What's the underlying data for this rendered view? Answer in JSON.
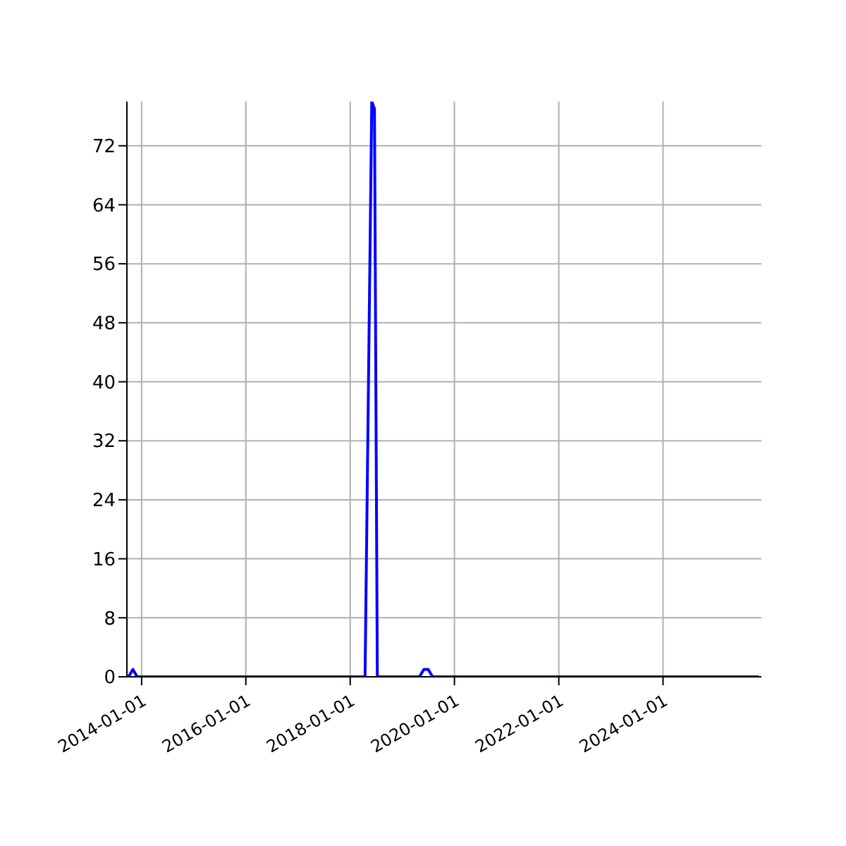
{
  "chart_data": {
    "type": "line",
    "x": [
      "2013-10-01",
      "2013-11-01",
      "2013-12-01",
      "2018-04-15",
      "2018-06-01",
      "2018-06-20",
      "2018-07-10",
      "2019-05-01",
      "2019-06-01",
      "2019-07-01",
      "2019-08-01",
      "2025-11-01"
    ],
    "series": [
      {
        "color": "#0000ff",
        "values": [
          0,
          1,
          0,
          0,
          78,
          77,
          0,
          0,
          1,
          1,
          0,
          0
        ]
      }
    ],
    "xlim": [
      "2013-09-20",
      "2025-11-20"
    ],
    "xticks": [
      "2014-01-01",
      "2016-01-01",
      "2018-01-01",
      "2020-01-01",
      "2022-01-01",
      "2024-01-01"
    ],
    "ylim": [
      0,
      78
    ],
    "yticks": [
      0,
      8,
      16,
      24,
      32,
      40,
      48,
      56,
      64,
      72
    ],
    "grid": true,
    "legend": false,
    "marker": "none",
    "line_style": "solid"
  }
}
